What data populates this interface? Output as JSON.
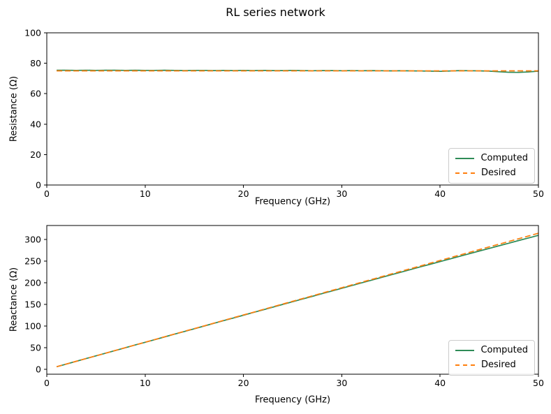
{
  "title": "RL series network",
  "chart_data": [
    {
      "type": "line",
      "xlabel": "Frequency (GHz)",
      "ylabel": "Resistance (Ω)",
      "xlim": [
        0,
        50
      ],
      "ylim": [
        0,
        100
      ],
      "xticks": [
        0,
        10,
        20,
        30,
        40,
        50
      ],
      "yticks": [
        0,
        20,
        40,
        60,
        80,
        100
      ],
      "grid": false,
      "legend_position": "lower right",
      "x": [
        1,
        2,
        3,
        4,
        5,
        6,
        7,
        8,
        9,
        10,
        11,
        12,
        13,
        14,
        15,
        16,
        17,
        18,
        19,
        20,
        21,
        22,
        23,
        24,
        25,
        26,
        27,
        28,
        29,
        30,
        31,
        32,
        33,
        34,
        35,
        36,
        37,
        38,
        39,
        40,
        41,
        42,
        43,
        44,
        45,
        46,
        47,
        48,
        49,
        50
      ],
      "series": [
        {
          "name": "Computed",
          "color": "#2e8b57",
          "style": "solid",
          "values": [
            75.4,
            75.4,
            75.3,
            75.4,
            75.3,
            75.4,
            75.4,
            75.3,
            75.4,
            75.3,
            75.3,
            75.4,
            75.3,
            75.2,
            75.3,
            75.3,
            75.2,
            75.3,
            75.2,
            75.3,
            75.2,
            75.3,
            75.2,
            75.2,
            75.3,
            75.2,
            75.1,
            75.2,
            75.2,
            75.1,
            75.2,
            75.1,
            75.2,
            75.1,
            75.0,
            75.1,
            75.0,
            74.9,
            74.8,
            74.7,
            74.9,
            75.2,
            75.1,
            75.0,
            74.8,
            74.4,
            74.1,
            74.0,
            74.3,
            74.8
          ]
        },
        {
          "name": "Desired",
          "color": "#ff7f0e",
          "style": "dashed",
          "values": [
            75,
            75,
            75,
            75,
            75,
            75,
            75,
            75,
            75,
            75,
            75,
            75,
            75,
            75,
            75,
            75,
            75,
            75,
            75,
            75,
            75,
            75,
            75,
            75,
            75,
            75,
            75,
            75,
            75,
            75,
            75,
            75,
            75,
            75,
            75,
            75,
            75,
            75,
            75,
            75,
            75,
            75,
            75,
            75,
            75,
            75,
            75,
            75,
            75,
            75
          ]
        }
      ]
    },
    {
      "type": "line",
      "xlabel": "Frequency (GHz)",
      "ylabel": "Reactance (Ω)",
      "xlim": [
        0,
        50
      ],
      "ylim": [
        -11,
        332
      ],
      "xticks": [
        0,
        10,
        20,
        30,
        40,
        50
      ],
      "yticks": [
        0,
        50,
        100,
        150,
        200,
        250,
        300
      ],
      "grid": false,
      "legend_position": "lower right",
      "x": [
        1,
        2,
        3,
        4,
        5,
        6,
        7,
        8,
        9,
        10,
        11,
        12,
        13,
        14,
        15,
        16,
        17,
        18,
        19,
        20,
        21,
        22,
        23,
        24,
        25,
        26,
        27,
        28,
        29,
        30,
        31,
        32,
        33,
        34,
        35,
        36,
        37,
        38,
        39,
        40,
        41,
        42,
        43,
        44,
        45,
        46,
        47,
        48,
        49,
        50
      ],
      "series": [
        {
          "name": "Computed",
          "color": "#2e8b57",
          "style": "solid",
          "values": [
            6.2,
            12.5,
            18.8,
            25.0,
            31.3,
            37.6,
            43.9,
            50.1,
            56.4,
            62.6,
            68.9,
            75.1,
            81.4,
            87.6,
            93.9,
            100.1,
            106.4,
            112.6,
            118.8,
            125.1,
            131.3,
            137.5,
            143.8,
            150.0,
            156.2,
            162.4,
            168.6,
            174.8,
            181.0,
            187.2,
            193.4,
            199.6,
            205.8,
            212.0,
            218.1,
            224.3,
            230.4,
            236.6,
            242.7,
            248.8,
            254.9,
            261.0,
            267.1,
            273.2,
            279.2,
            285.3,
            291.3,
            297.3,
            303.3,
            309.3
          ]
        },
        {
          "name": "Desired",
          "color": "#ff7f0e",
          "style": "dashed",
          "values": [
            6.3,
            12.6,
            18.8,
            25.1,
            31.4,
            37.7,
            44.0,
            50.3,
            56.5,
            62.8,
            69.1,
            75.4,
            81.7,
            88.0,
            94.2,
            100.5,
            106.8,
            113.1,
            119.4,
            125.7,
            131.9,
            138.2,
            144.5,
            150.8,
            157.1,
            163.4,
            169.6,
            175.9,
            182.2,
            188.5,
            194.8,
            201.1,
            207.3,
            213.6,
            219.9,
            226.2,
            232.5,
            238.8,
            245.0,
            251.3,
            257.6,
            263.9,
            270.2,
            276.5,
            282.7,
            289.0,
            295.3,
            301.6,
            307.9,
            314.2
          ]
        }
      ]
    }
  ]
}
